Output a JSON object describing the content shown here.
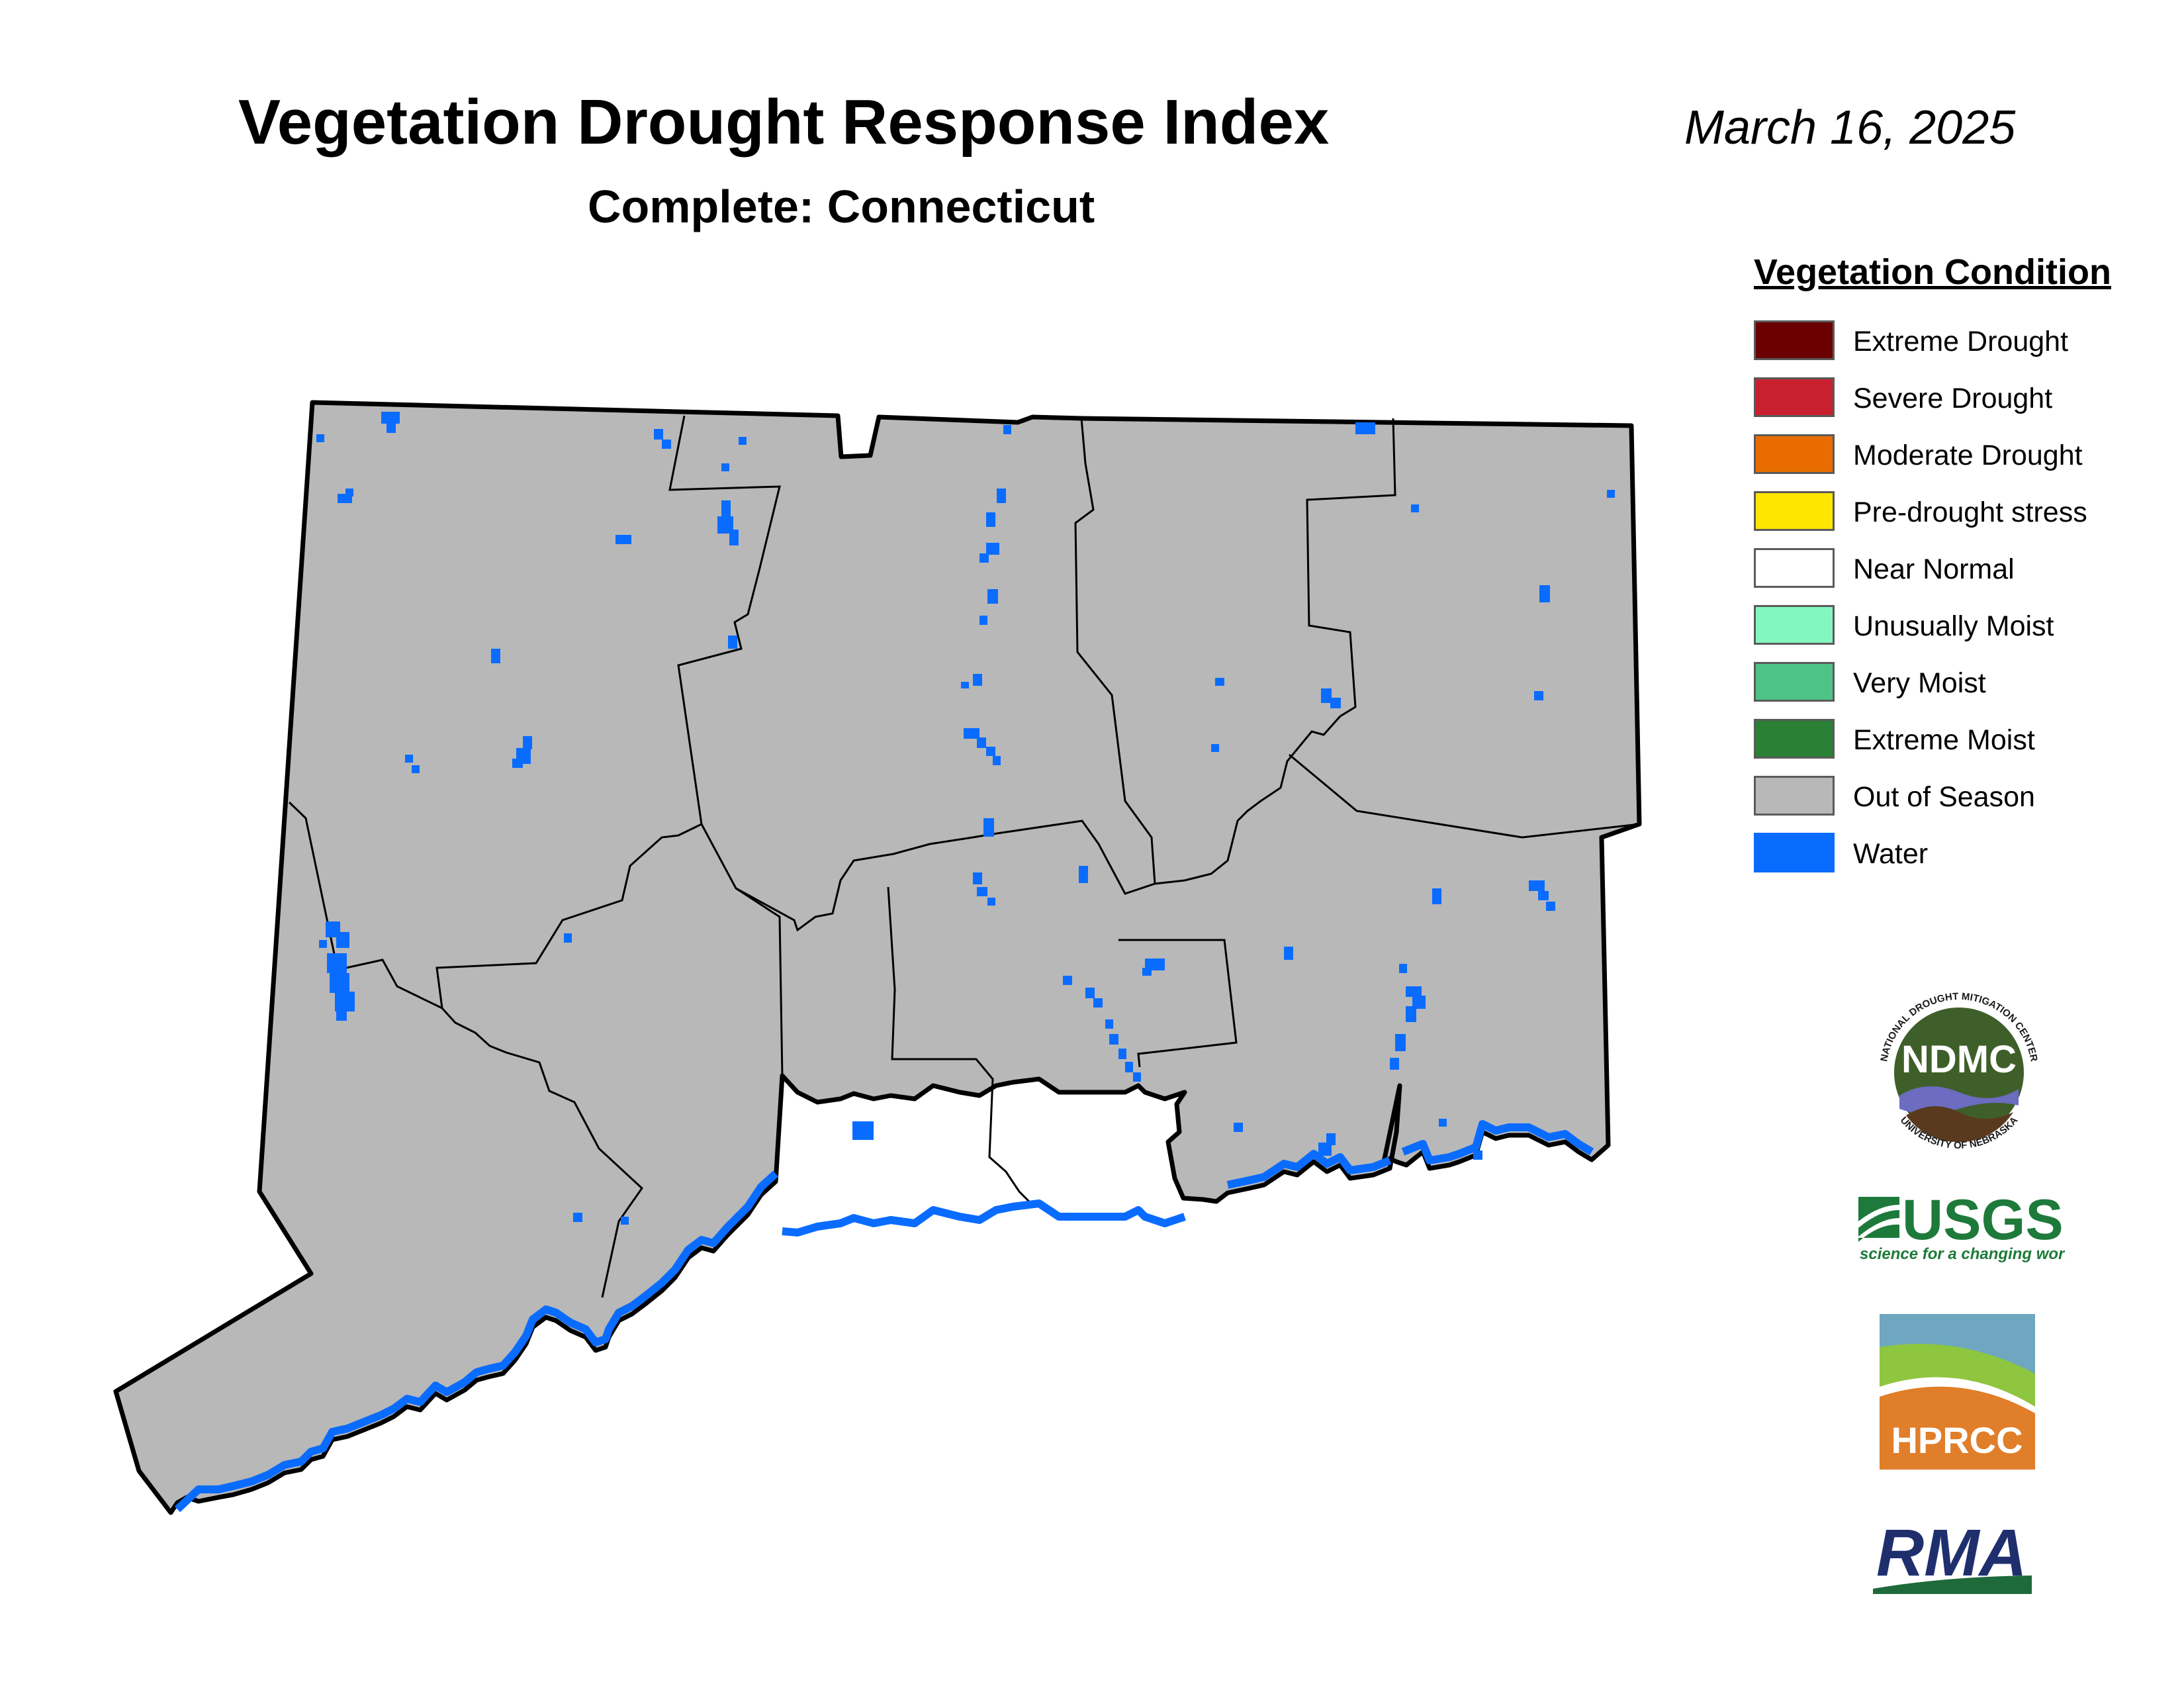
{
  "title": "Vegetation Drought Response Index",
  "subtitle": "Complete: Connecticut",
  "date": "March 16, 2025",
  "legend": {
    "title": "Vegetation Condition",
    "items": [
      {
        "label": "Extreme Drought",
        "color": "#6b0000"
      },
      {
        "label": "Severe Drought",
        "color": "#c9202f"
      },
      {
        "label": "Moderate Drought",
        "color": "#e86c00"
      },
      {
        "label": "Pre-drought stress",
        "color": "#ffe600"
      },
      {
        "label": "Near Normal",
        "color": "#ffffff"
      },
      {
        "label": "Unusually Moist",
        "color": "#84f7c0"
      },
      {
        "label": "Very Moist",
        "color": "#4fc387"
      },
      {
        "label": "Extreme Moist",
        "color": "#2a8035"
      },
      {
        "label": "Out of Season",
        "color": "#b8b8b8"
      },
      {
        "label": "Water",
        "color": "#0a6cff"
      }
    ]
  },
  "logos": {
    "ndmc": {
      "text": "NDMC",
      "ring_top": "NATIONAL DROUGHT MITIGATION CENTER",
      "ring_bottom": "UNIVERSITY OF NEBRASKA"
    },
    "usgs": {
      "text": "USGS",
      "tagline": "science for a changing world"
    },
    "hprcc": {
      "text": "HPRCC"
    },
    "rma": {
      "text": "RMA"
    }
  },
  "colors": {
    "land": "#b8b8b8",
    "water": "#0a6cff",
    "border": "#000000"
  }
}
